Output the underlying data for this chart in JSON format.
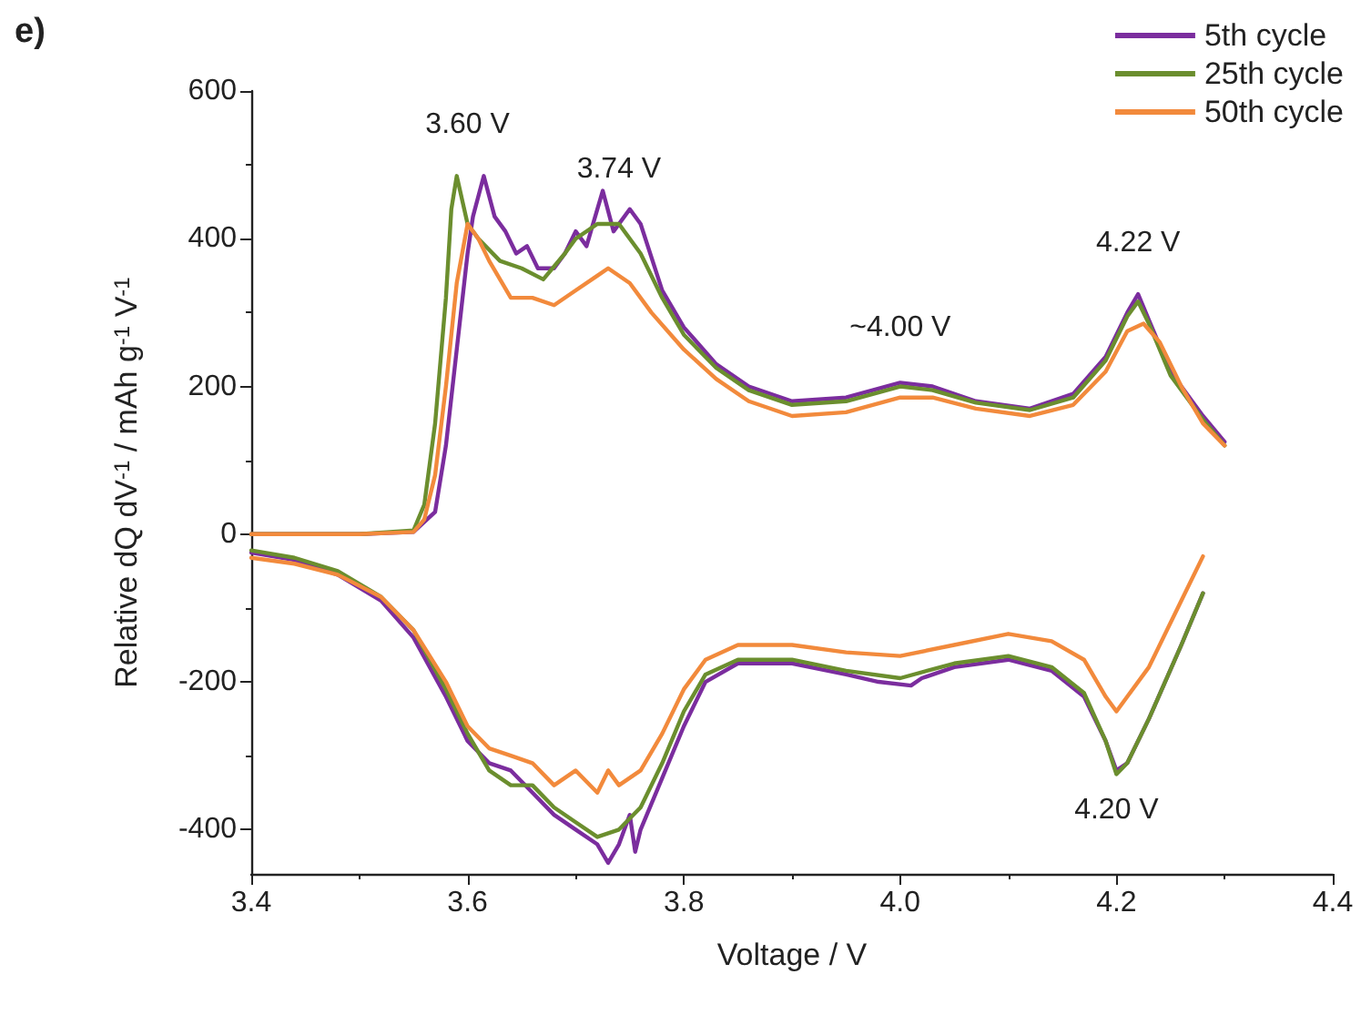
{
  "chart_data": {
    "type": "line",
    "xlabel": "Voltage / V",
    "ylabel": "Relative dQ dV$^{-1}$ / mAh g$^{-1}$ V$^{-1}$",
    "xlim": [
      3.4,
      4.4
    ],
    "xticks": [
      3.4,
      3.6,
      3.8,
      {
        "value": 4,
        "label": "4.0"
      },
      4.2,
      4.4
    ],
    "ylim": [
      -460,
      600
    ],
    "yticks": [
      -400,
      -200,
      0,
      200,
      400,
      600
    ],
    "grid": false,
    "legend": "top right",
    "marker": "none",
    "line_style": "solid",
    "annotations": [
      "e)",
      {
        "text": "3.60 V",
        "x": 3.6,
        "y": 480
      },
      {
        "text": "3.74 V",
        "x": 3.74,
        "y": 420
      },
      {
        "text": "~4.00 V",
        "x": 4.0,
        "y": 205
      },
      {
        "text": "4.22 V",
        "x": 4.22,
        "y": 320
      },
      {
        "text": "4.20 V",
        "x": 4.2,
        "y": -320
      }
    ],
    "series": [
      {
        "name": "5th cycle",
        "color": "#7b2d9e",
        "x": [
          3.4,
          3.5,
          3.55,
          3.57,
          3.58,
          3.59,
          3.6,
          3.605,
          3.615,
          3.625,
          3.635,
          3.645,
          3.655,
          3.665,
          3.68,
          3.69,
          3.7,
          3.71,
          3.72,
          3.725,
          3.735,
          3.75,
          3.76,
          3.78,
          3.8,
          3.83,
          3.86,
          3.9,
          3.95,
          4.0,
          4.03,
          4.07,
          4.12,
          4.16,
          4.19,
          4.21,
          4.22,
          4.23,
          4.25,
          4.28,
          4.3,
          4.29,
          4.28,
          4.26,
          4.23,
          4.21,
          4.2,
          4.19,
          4.17,
          4.14,
          4.1,
          4.05,
          4.02,
          4.01,
          3.98,
          3.95,
          3.9,
          3.85,
          3.82,
          3.8,
          3.78,
          3.76,
          3.755,
          3.75,
          3.74,
          3.73,
          3.72,
          3.7,
          3.68,
          3.66,
          3.64,
          3.62,
          3.6,
          3.58,
          3.55,
          3.52,
          3.48,
          3.44,
          3.4
        ],
        "values": [
          0,
          0,
          3,
          30,
          120,
          250,
          380,
          430,
          485,
          430,
          410,
          380,
          390,
          360,
          360,
          380,
          410,
          390,
          440,
          465,
          410,
          440,
          420,
          330,
          280,
          230,
          200,
          180,
          185,
          205,
          200,
          180,
          170,
          190,
          240,
          300,
          325,
          290,
          220,
          160,
          125,
          null,
          -80,
          -150,
          -250,
          -310,
          -320,
          -280,
          -220,
          -185,
          -170,
          -180,
          -195,
          -205,
          -200,
          -190,
          -175,
          -175,
          -200,
          -260,
          -330,
          -400,
          -430,
          -380,
          -420,
          -445,
          -420,
          -400,
          -380,
          -350,
          -320,
          -310,
          -280,
          -220,
          -140,
          -90,
          -55,
          -35,
          -25
        ]
      },
      {
        "name": "25th cycle",
        "color": "#6b8e2e",
        "x": [
          3.4,
          3.5,
          3.55,
          3.56,
          3.57,
          3.58,
          3.585,
          3.59,
          3.6,
          3.61,
          3.63,
          3.65,
          3.67,
          3.69,
          3.7,
          3.72,
          3.74,
          3.76,
          3.78,
          3.8,
          3.83,
          3.86,
          3.9,
          3.95,
          4.0,
          4.03,
          4.07,
          4.12,
          4.16,
          4.19,
          4.21,
          4.22,
          4.23,
          4.25,
          4.28,
          4.3,
          4.29,
          4.28,
          4.26,
          4.23,
          4.21,
          4.2,
          4.19,
          4.17,
          4.14,
          4.1,
          4.05,
          4.0,
          3.95,
          3.9,
          3.85,
          3.82,
          3.8,
          3.78,
          3.76,
          3.74,
          3.72,
          3.7,
          3.68,
          3.66,
          3.64,
          3.62,
          3.6,
          3.58,
          3.55,
          3.52,
          3.48,
          3.44,
          3.4
        ],
        "values": [
          0,
          0,
          5,
          40,
          150,
          320,
          440,
          485,
          420,
          400,
          370,
          360,
          345,
          380,
          400,
          420,
          420,
          380,
          320,
          270,
          225,
          195,
          175,
          180,
          200,
          195,
          178,
          168,
          185,
          235,
          295,
          315,
          285,
          215,
          155,
          120,
          null,
          -80,
          -150,
          -250,
          -310,
          -325,
          -280,
          -215,
          -180,
          -165,
          -175,
          -195,
          -185,
          -170,
          -170,
          -190,
          -240,
          -310,
          -370,
          -400,
          -410,
          -390,
          -370,
          -340,
          -340,
          -320,
          -270,
          -210,
          -130,
          -85,
          -50,
          -32,
          -22
        ]
      },
      {
        "name": "50th cycle",
        "color": "#f28a3c",
        "x": [
          3.4,
          3.5,
          3.55,
          3.56,
          3.57,
          3.58,
          3.59,
          3.6,
          3.61,
          3.62,
          3.64,
          3.66,
          3.68,
          3.7,
          3.72,
          3.73,
          3.75,
          3.77,
          3.8,
          3.83,
          3.86,
          3.9,
          3.95,
          4.0,
          4.03,
          4.07,
          4.12,
          4.16,
          4.19,
          4.21,
          4.225,
          4.24,
          4.26,
          4.28,
          4.3,
          4.29,
          4.28,
          4.26,
          4.23,
          4.21,
          4.2,
          4.19,
          4.17,
          4.14,
          4.1,
          4.05,
          4.0,
          3.95,
          3.9,
          3.85,
          3.82,
          3.8,
          3.78,
          3.76,
          3.74,
          3.73,
          3.72,
          3.7,
          3.68,
          3.66,
          3.64,
          3.62,
          3.6,
          3.58,
          3.55,
          3.52,
          3.48,
          3.44,
          3.4
        ],
        "values": [
          0,
          0,
          3,
          20,
          80,
          200,
          340,
          420,
          400,
          370,
          320,
          320,
          310,
          330,
          350,
          360,
          340,
          300,
          250,
          210,
          180,
          160,
          165,
          185,
          185,
          170,
          160,
          175,
          220,
          275,
          285,
          260,
          200,
          150,
          120,
          null,
          -30,
          -90,
          -180,
          -220,
          -240,
          -220,
          -170,
          -145,
          -135,
          -150,
          -165,
          -160,
          -150,
          -150,
          -170,
          -210,
          -270,
          -320,
          -340,
          -320,
          -350,
          -320,
          -340,
          -310,
          -300,
          -290,
          -260,
          -200,
          -130,
          -85,
          -55,
          -40,
          -32
        ]
      }
    ]
  }
}
